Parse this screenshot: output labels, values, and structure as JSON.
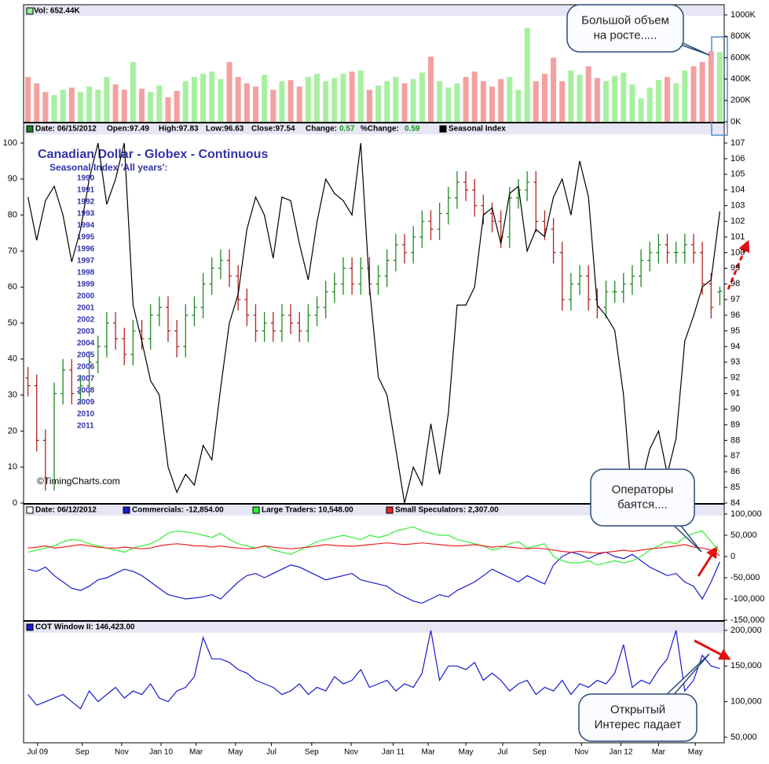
{
  "chart_data": [
    {
      "type": "bar",
      "header": "Vol: 652.44K",
      "legend_color": "#99ee99",
      "up_color": "#a6f0a0",
      "down_color": "#f4a0a0",
      "values": [
        420,
        360,
        280,
        250,
        300,
        320,
        280,
        330,
        300,
        420,
        350,
        300,
        560,
        310,
        280,
        340,
        230,
        290,
        380,
        420,
        450,
        470,
        400,
        560,
        420,
        360,
        330,
        440,
        300,
        380,
        390,
        330,
        420,
        450,
        380,
        410,
        450,
        470,
        480,
        300,
        340,
        380,
        420,
        360,
        400,
        460,
        610,
        380,
        320,
        360,
        420,
        470,
        380,
        330,
        400,
        420,
        300,
        880,
        380,
        450,
        600,
        380,
        480,
        440,
        520,
        410,
        380,
        430,
        460,
        350,
        220,
        320,
        390,
        420,
        360,
        480,
        520,
        560,
        660,
        652.44
      ],
      "ylim": [
        0,
        1000
      ],
      "yticks": [
        {
          "value": 0,
          "label": "0K"
        },
        {
          "value": 200,
          "label": "200K"
        },
        {
          "value": 400,
          "label": "400K"
        },
        {
          "value": 600,
          "label": "600K"
        },
        {
          "value": 800,
          "label": "800K"
        },
        {
          "value": 1000,
          "label": "1000K"
        }
      ],
      "annotations": [
        {
          "lines": [
            "Большой объем",
            "на росте....."
          ]
        }
      ]
    },
    {
      "type": "ohlc",
      "title": "Canadian Dollar - Globex - Continuous",
      "subtitle": "Seasonal Index 'All years':",
      "years": [
        "1990",
        "1991",
        "1992",
        "1993",
        "1994",
        "1995",
        "1996",
        "1997",
        "1998",
        "1999",
        "2000",
        "2001",
        "2002",
        "2003",
        "2004",
        "2005",
        "2006",
        "2007",
        "2008",
        "2009",
        "2010",
        "2011"
      ],
      "copyright": "©TimingCharts.com",
      "header": {
        "date": "Date: 06/15/2012",
        "open": "Open:97.49",
        "high": "High:97.83",
        "low": "Low:96.63",
        "close": "Close:97.54",
        "change_label": "Change:",
        "change": "0.57",
        "pct_change_label": "%Change:",
        "pct_change": "0.59"
      },
      "header_color": "#1f7a1f",
      "bars": {
        "axis": "y2",
        "up_color": "#1f8a1f",
        "down_color": "#b22222",
        "open": [
          92,
          91.5,
          88,
          85.5,
          91,
          92.5,
          91,
          91.5,
          93,
          94,
          95.5,
          94.5,
          93.5,
          95,
          94.5,
          96,
          96.5,
          95,
          94,
          96,
          96.5,
          98,
          99,
          99.5,
          98.5,
          97,
          96,
          95,
          95.5,
          95,
          96,
          95.5,
          95,
          96,
          96.5,
          97.5,
          98,
          99,
          98,
          99,
          98,
          98.5,
          99.5,
          100.5,
          100,
          101,
          102,
          101.5,
          102.5,
          103.5,
          104.5,
          104,
          103,
          102.5,
          102,
          101,
          103.5,
          104,
          104.5,
          102,
          101.5,
          100,
          97,
          98,
          98.5,
          97,
          96.5,
          97.5,
          97.5,
          98,
          98.5,
          99.5,
          100,
          100.5,
          100,
          100,
          100.5,
          100,
          98,
          97.49
        ],
        "high": [
          92.7,
          92.2,
          88.7,
          91.7,
          93.2,
          93.2,
          92.2,
          93.7,
          94.7,
          96.2,
          96.2,
          95.2,
          95.7,
          95.7,
          96.7,
          97.2,
          97.2,
          95.7,
          96.7,
          97.2,
          98.7,
          99.7,
          100.2,
          100.2,
          99.2,
          97.7,
          96.7,
          96.2,
          96.2,
          96.7,
          96.7,
          96.2,
          96.7,
          97.2,
          98.2,
          98.7,
          99.7,
          99.7,
          99.7,
          99.7,
          99.2,
          100.2,
          101.2,
          101.2,
          101.7,
          102.7,
          102.7,
          103.2,
          104.2,
          105.2,
          105.2,
          104.7,
          103.7,
          103.2,
          102.7,
          104.2,
          104.7,
          105.2,
          105.2,
          102.7,
          102.2,
          100.7,
          98.7,
          99.2,
          99.2,
          97.7,
          98.2,
          98.2,
          98.7,
          99.2,
          100.2,
          100.7,
          101.2,
          101.2,
          100.7,
          101.2,
          101.2,
          100.7,
          98.7,
          97.83
        ],
        "low": [
          90.8,
          87.3,
          84.8,
          84.8,
          90.3,
          90.3,
          90.3,
          90.8,
          92.3,
          93.3,
          93.8,
          92.8,
          92.8,
          93.8,
          93.8,
          95.3,
          94.3,
          93.3,
          93.3,
          95.3,
          95.8,
          97.3,
          98.3,
          97.8,
          96.3,
          95.3,
          94.3,
          94.3,
          94.3,
          94.3,
          94.8,
          94.3,
          94.3,
          95.3,
          95.8,
          96.8,
          97.3,
          97.3,
          97.3,
          97.3,
          97.3,
          97.8,
          98.8,
          99.3,
          99.3,
          100.3,
          100.8,
          100.8,
          101.8,
          102.8,
          103.3,
          102.3,
          101.8,
          101.3,
          100.3,
          100.3,
          102.8,
          103.3,
          101.3,
          100.8,
          99.3,
          96.3,
          96.3,
          97.3,
          96.3,
          95.8,
          95.8,
          96.8,
          96.8,
          97.3,
          97.8,
          98.8,
          99.3,
          99.3,
          99.3,
          99.3,
          99.3,
          97.3,
          95.8,
          96.63
        ],
        "close": [
          91.5,
          88,
          85.5,
          91,
          92.5,
          91,
          91.5,
          93,
          94,
          95.5,
          94.5,
          93.5,
          95,
          94.5,
          96,
          96.5,
          95,
          94,
          96,
          96.5,
          98,
          99,
          99.5,
          98.5,
          97,
          96,
          95,
          95.5,
          95,
          96,
          95.5,
          95,
          96,
          96.5,
          97.5,
          98,
          99,
          98,
          99,
          98,
          98.5,
          99.5,
          100.5,
          100,
          101,
          102,
          101.5,
          102.5,
          103.5,
          104.5,
          104,
          103,
          102.5,
          102,
          101,
          103.5,
          104,
          104.5,
          102,
          101.5,
          100,
          97,
          98,
          98.5,
          97,
          96.5,
          97.5,
          97.5,
          98,
          98.5,
          99.5,
          100,
          100.5,
          100,
          100,
          100.5,
          100,
          98,
          96.5,
          97.54
        ]
      },
      "series": [
        {
          "name": "Seasonal Index",
          "color": "#000000",
          "values": [
            85,
            73,
            84,
            88,
            80,
            67,
            76,
            90,
            100,
            83,
            90,
            100,
            55,
            45,
            34,
            30,
            10,
            3,
            8,
            5,
            16,
            12,
            32,
            50,
            58,
            76,
            85,
            80,
            68,
            85,
            84,
            72,
            62,
            78,
            90,
            86,
            84,
            80,
            100,
            60,
            35,
            30,
            15,
            0,
            10,
            5,
            22,
            8,
            25,
            55,
            55,
            60,
            80,
            82,
            72,
            86,
            88,
            70,
            76,
            74,
            85,
            90,
            80,
            95,
            85,
            55,
            52,
            48,
            30,
            0,
            5,
            15,
            20,
            8,
            18,
            45,
            52,
            60,
            62,
            81
          ]
        }
      ],
      "ylim": [
        0,
        100
      ],
      "yticks": [
        0,
        10,
        20,
        30,
        40,
        50,
        60,
        70,
        80,
        90,
        100
      ],
      "y2lim": [
        84,
        107
      ],
      "y2ticks": [
        84,
        85,
        86,
        87,
        88,
        89,
        90,
        91,
        92,
        93,
        94,
        95,
        96,
        97,
        98,
        99,
        100,
        101,
        102,
        103,
        104,
        105,
        106,
        107
      ]
    },
    {
      "type": "line",
      "header": "Date: 06/12/2012",
      "series": [
        {
          "name": "Commercials: -12,854.00",
          "color": "#1a1ad0",
          "values": [
            -30000,
            -35000,
            -25000,
            -45000,
            -60000,
            -75000,
            -80000,
            -70000,
            -55000,
            -50000,
            -40000,
            -30000,
            -35000,
            -45000,
            -60000,
            -75000,
            -90000,
            -95000,
            -100000,
            -98000,
            -95000,
            -90000,
            -100000,
            -80000,
            -60000,
            -45000,
            -40000,
            -50000,
            -40000,
            -30000,
            -20000,
            -25000,
            -35000,
            -45000,
            -55000,
            -50000,
            -45000,
            -40000,
            -55000,
            -60000,
            -65000,
            -70000,
            -85000,
            -95000,
            -105000,
            -110000,
            -100000,
            -90000,
            -95000,
            -80000,
            -70000,
            -60000,
            -45000,
            -30000,
            -40000,
            -50000,
            -60000,
            -45000,
            -55000,
            -65000,
            -20000,
            0,
            10000,
            5000,
            -5000,
            5000,
            10000,
            0,
            -5000,
            5000,
            -10000,
            -25000,
            -35000,
            -45000,
            -40000,
            -60000,
            -70000,
            -100000,
            -60000,
            -12854
          ]
        },
        {
          "name": "Large Traders: 10,548.00",
          "color": "#33ee33",
          "values": [
            10000,
            15000,
            20000,
            25000,
            35000,
            40000,
            38000,
            30000,
            25000,
            20000,
            15000,
            10000,
            20000,
            25000,
            30000,
            40000,
            55000,
            60000,
            58000,
            55000,
            50000,
            45000,
            55000,
            40000,
            30000,
            25000,
            20000,
            25000,
            15000,
            10000,
            5000,
            15000,
            25000,
            35000,
            40000,
            45000,
            50000,
            45000,
            40000,
            50000,
            45000,
            50000,
            60000,
            65000,
            70000,
            60000,
            55000,
            50000,
            50000,
            40000,
            35000,
            30000,
            25000,
            15000,
            20000,
            30000,
            35000,
            20000,
            25000,
            30000,
            0,
            -10000,
            -15000,
            -15000,
            -10000,
            -20000,
            -15000,
            -10000,
            -15000,
            -10000,
            0,
            15000,
            25000,
            35000,
            30000,
            45000,
            55000,
            60000,
            35000,
            10548
          ]
        },
        {
          "name": "Small Speculators: 2,307.00",
          "color": "#ee2222",
          "values": [
            20000,
            22000,
            25000,
            20000,
            22000,
            25000,
            28000,
            25000,
            22000,
            20000,
            20000,
            22000,
            20000,
            18000,
            20000,
            25000,
            28000,
            30000,
            28000,
            25000,
            25000,
            22000,
            25000,
            22000,
            20000,
            18000,
            20000,
            25000,
            22000,
            20000,
            18000,
            20000,
            22000,
            25000,
            28000,
            26000,
            25000,
            24000,
            26000,
            28000,
            30000,
            32000,
            30000,
            28000,
            30000,
            32000,
            30000,
            28000,
            26000,
            25000,
            26000,
            28000,
            25000,
            22000,
            24000,
            22000,
            20000,
            18000,
            20000,
            18000,
            15000,
            12000,
            10000,
            12000,
            10000,
            8000,
            10000,
            12000,
            15000,
            12000,
            15000,
            18000,
            20000,
            22000,
            25000,
            28000,
            22000,
            20000,
            15000,
            2307
          ]
        }
      ],
      "ylim": [
        -150000,
        100000
      ],
      "yticks": [
        {
          "value": 100000,
          "label": "100,000"
        },
        {
          "value": 50000,
          "label": "50,000"
        },
        0,
        {
          "value": -50000,
          "label": "-50,000"
        },
        {
          "value": -100000,
          "label": "-100,000"
        },
        {
          "value": -150000,
          "label": "-150,000"
        }
      ],
      "annotations": [
        {
          "lines": [
            "Операторы",
            "баятся...."
          ]
        }
      ]
    },
    {
      "type": "line",
      "series": [
        {
          "name": "COT Window II: 146,423.00",
          "color": "#1a1ad0",
          "values": [
            110000,
            95000,
            100000,
            105000,
            110000,
            100000,
            90000,
            115000,
            100000,
            110000,
            120000,
            105000,
            115000,
            110000,
            125000,
            105000,
            100000,
            115000,
            120000,
            135000,
            190000,
            160000,
            160000,
            155000,
            145000,
            140000,
            130000,
            125000,
            120000,
            110000,
            115000,
            125000,
            110000,
            120000,
            115000,
            135000,
            125000,
            130000,
            145000,
            120000,
            125000,
            130000,
            115000,
            125000,
            120000,
            140000,
            200000,
            130000,
            150000,
            150000,
            145000,
            155000,
            130000,
            140000,
            130000,
            115000,
            125000,
            130000,
            110000,
            120000,
            115000,
            130000,
            110000,
            125000,
            120000,
            130000,
            125000,
            140000,
            180000,
            120000,
            130000,
            125000,
            145000,
            160000,
            200000,
            115000,
            130000,
            165000,
            150000,
            146423
          ]
        }
      ],
      "ylim": [
        50000,
        200000
      ],
      "yticks": [
        {
          "value": 200000,
          "label": "200,000"
        },
        {
          "value": 150000,
          "label": "150,000"
        },
        {
          "value": 100000,
          "label": "100,000"
        },
        {
          "value": 50000,
          "label": "50,000"
        }
      ],
      "xlim": [
        0,
        80
      ],
      "xticks": [
        {
          "value": 1.6,
          "label": "Jul 09"
        },
        {
          "value": 6.7,
          "label": "Sep"
        },
        {
          "value": 11.2,
          "label": "Nov"
        },
        {
          "value": 15.7,
          "label": "Jan 10"
        },
        {
          "value": 19.7,
          "label": "Mar"
        },
        {
          "value": 24.2,
          "label": "May"
        },
        {
          "value": 28.3,
          "label": "Jul"
        },
        {
          "value": 32.9,
          "label": "Sep"
        },
        {
          "value": 37.4,
          "label": "Nov"
        },
        {
          "value": 42.2,
          "label": "Jan 11"
        },
        {
          "value": 46.2,
          "label": "Mar"
        },
        {
          "value": 50.5,
          "label": "May"
        },
        {
          "value": 54.7,
          "label": "Jul"
        },
        {
          "value": 58.9,
          "label": "Sep"
        },
        {
          "value": 63.7,
          "label": "Nov"
        },
        {
          "value": 68.2,
          "label": "Jan 12"
        },
        {
          "value": 72.5,
          "label": "Mar"
        },
        {
          "value": 76.7,
          "label": "May"
        }
      ],
      "annotations": [
        {
          "lines": [
            "Открытый",
            "Интерес падает"
          ]
        }
      ]
    }
  ]
}
